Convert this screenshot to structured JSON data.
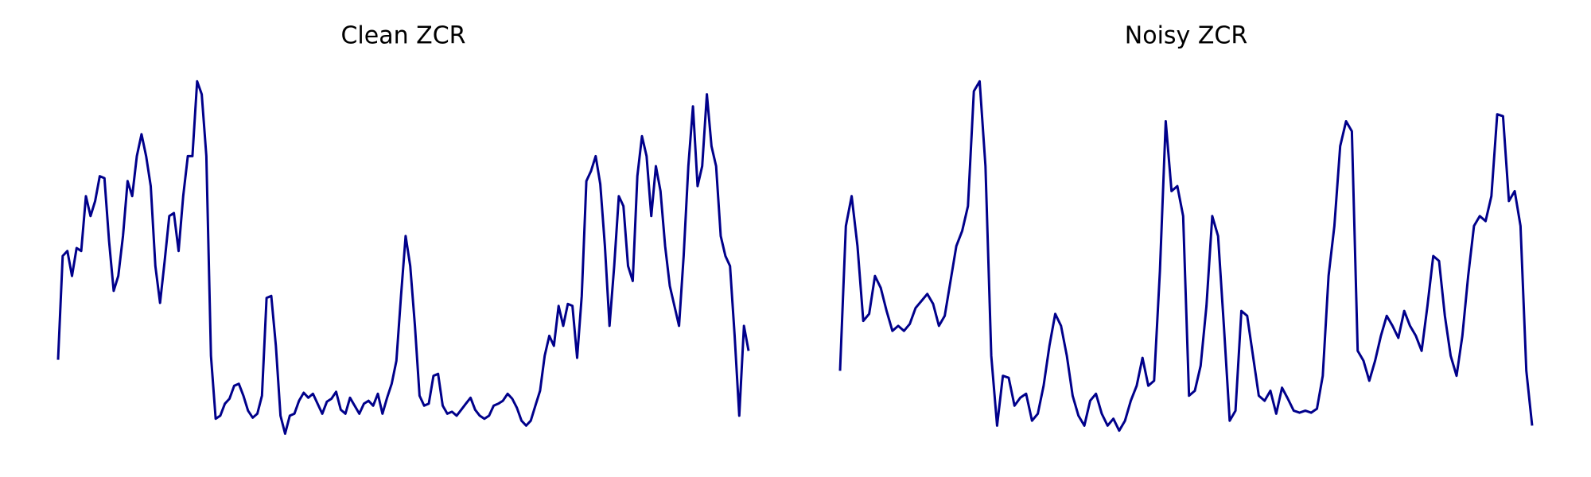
{
  "chart_data": [
    {
      "type": "line",
      "title": "Clean ZCR",
      "color": "#00008b",
      "ylim": [
        0,
        360
      ],
      "values": [
        76,
        180,
        185,
        160,
        188,
        185,
        240,
        220,
        235,
        260,
        258,
        195,
        145,
        160,
        200,
        255,
        240,
        280,
        302,
        280,
        250,
        170,
        133,
        175,
        220,
        223,
        185,
        240,
        280,
        280,
        355,
        342,
        280,
        80,
        17,
        20,
        32,
        37,
        50,
        52,
        40,
        25,
        18,
        22,
        40,
        138,
        140,
        90,
        20,
        2,
        20,
        22,
        35,
        43,
        38,
        42,
        32,
        22,
        34,
        37,
        44,
        26,
        22,
        38,
        30,
        22,
        32,
        35,
        30,
        42,
        22,
        38,
        52,
        75,
        140,
        200,
        170,
        110,
        40,
        30,
        32,
        60,
        62,
        30,
        22,
        24,
        20,
        26,
        32,
        38,
        26,
        20,
        17,
        20,
        30,
        32,
        35,
        42,
        37,
        28,
        15,
        10,
        15,
        30,
        45,
        80,
        100,
        90,
        130,
        110,
        132,
        130,
        78,
        140,
        255,
        265,
        280,
        252,
        190,
        110,
        170,
        240,
        230,
        170,
        155,
        260,
        300,
        280,
        220,
        270,
        245,
        190,
        150,
        130,
        110,
        180,
        270,
        330,
        250,
        270,
        342,
        290,
        270,
        200,
        180,
        170,
        100,
        20,
        110,
        85
      ]
    },
    {
      "type": "line",
      "title": "Noisy ZCR",
      "color": "#00008b",
      "ylim": [
        0,
        360
      ],
      "values": [
        65,
        210,
        240,
        190,
        115,
        122,
        160,
        148,
        125,
        105,
        110,
        105,
        112,
        128,
        135,
        142,
        132,
        110,
        120,
        155,
        190,
        205,
        230,
        345,
        355,
        270,
        80,
        10,
        60,
        58,
        30,
        38,
        42,
        15,
        22,
        50,
        90,
        122,
        110,
        80,
        40,
        20,
        10,
        35,
        42,
        22,
        10,
        17,
        5,
        15,
        35,
        50,
        78,
        50,
        55,
        165,
        315,
        245,
        250,
        220,
        40,
        45,
        70,
        130,
        220,
        200,
        110,
        15,
        25,
        125,
        120,
        80,
        40,
        35,
        45,
        22,
        48,
        37,
        25,
        23,
        25,
        23,
        27,
        60,
        160,
        210,
        290,
        315,
        305,
        85,
        75,
        55,
        75,
        100,
        120,
        110,
        98,
        125,
        110,
        100,
        85,
        130,
        180,
        175,
        120,
        80,
        60,
        100,
        160,
        210,
        220,
        215,
        240,
        322,
        320,
        235,
        245,
        210,
        65,
        10
      ]
    }
  ]
}
